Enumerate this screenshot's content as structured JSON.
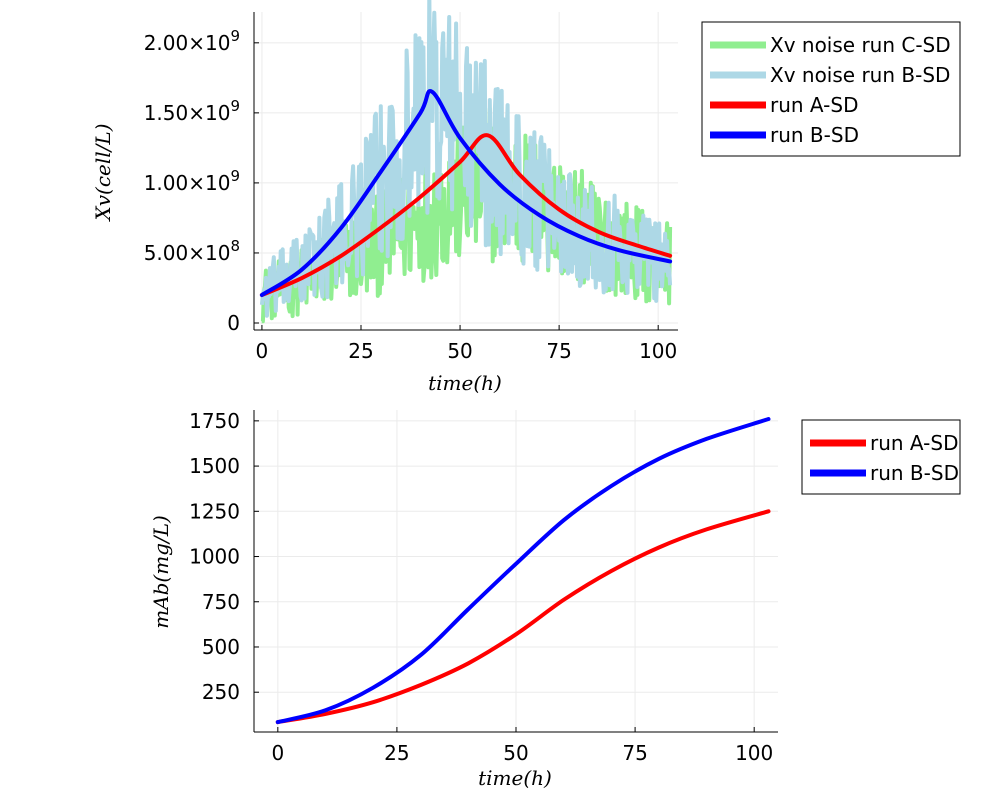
{
  "chart_data": [
    {
      "type": "line",
      "xlabel": "time(h)",
      "ylabel": "Xv(cell/L)",
      "xlim": [
        -2,
        105
      ],
      "ylim": [
        -50000000,
        2220000000
      ],
      "xticks": [
        0,
        25,
        50,
        75,
        100
      ],
      "xtick_labels": [
        "0",
        "25",
        "50",
        "75",
        "100"
      ],
      "yticks": [
        0,
        500000000,
        1000000000,
        1500000000,
        2000000000
      ],
      "ytick_labels": [
        "0",
        "5.00×10",
        "1.00×10",
        "1.50×10",
        "2.00×10"
      ],
      "ytick_exponents": [
        "",
        "8",
        "9",
        "9",
        "9"
      ],
      "grid": true,
      "legend_position": "outside-top-right",
      "series": [
        {
          "name": "Xv noise run C-SD",
          "color": "#90ee90",
          "style": "noisy",
          "x": [
            0,
            10,
            20,
            30,
            40,
            50,
            57,
            65,
            75,
            85,
            95,
            103
          ],
          "values": [
            200000000,
            300000000,
            420000000,
            560000000,
            740000000,
            920000000,
            1020000000,
            900000000,
            760000000,
            610000000,
            500000000,
            430000000
          ]
        },
        {
          "name": "Xv noise run B-SD",
          "color": "#add8e6",
          "style": "noisy",
          "x": [
            0,
            10,
            20,
            30,
            40,
            43,
            50,
            60,
            70,
            80,
            90,
            103
          ],
          "values": [
            200000000,
            380000000,
            620000000,
            1000000000,
            1480000000,
            1600000000,
            1420000000,
            1100000000,
            850000000,
            680000000,
            550000000,
            450000000
          ]
        },
        {
          "name": "run A-SD",
          "color": "#ff0000",
          "style": "smooth",
          "x": [
            0,
            10,
            20,
            30,
            40,
            50,
            57,
            65,
            75,
            85,
            95,
            103
          ],
          "values": [
            200000000,
            320000000,
            480000000,
            680000000,
            900000000,
            1150000000,
            1340000000,
            1060000000,
            810000000,
            650000000,
            550000000,
            480000000
          ]
        },
        {
          "name": "run B-SD",
          "color": "#0000ff",
          "style": "smooth",
          "x": [
            0,
            10,
            20,
            30,
            40,
            43,
            50,
            60,
            70,
            80,
            90,
            103
          ],
          "values": [
            200000000,
            380000000,
            680000000,
            1080000000,
            1500000000,
            1650000000,
            1320000000,
            990000000,
            770000000,
            620000000,
            520000000,
            440000000
          ]
        }
      ]
    },
    {
      "type": "line",
      "xlabel": "time(h)",
      "ylabel": "mAb(mg/L)",
      "xlim": [
        -5,
        105
      ],
      "ylim": [
        30,
        1810
      ],
      "xticks": [
        0,
        25,
        50,
        75,
        100
      ],
      "xtick_labels": [
        "0",
        "25",
        "50",
        "75",
        "100"
      ],
      "yticks": [
        250,
        500,
        750,
        1000,
        1250,
        1500,
        1750
      ],
      "ytick_labels": [
        "250",
        "500",
        "750",
        "1000",
        "1250",
        "1500",
        "1750"
      ],
      "grid": true,
      "legend_position": "outside-top-right",
      "series": [
        {
          "name": "run A-SD",
          "color": "#ff0000",
          "x": [
            0,
            10,
            20,
            30,
            40,
            50,
            60,
            70,
            80,
            90,
            103
          ],
          "values": [
            85,
            130,
            195,
            290,
            410,
            570,
            760,
            920,
            1050,
            1150,
            1250
          ]
        },
        {
          "name": "run B-SD",
          "color": "#0000ff",
          "x": [
            0,
            10,
            20,
            30,
            40,
            50,
            60,
            70,
            80,
            90,
            103
          ],
          "values": [
            85,
            150,
            275,
            455,
            710,
            960,
            1200,
            1390,
            1540,
            1650,
            1760
          ]
        }
      ]
    }
  ]
}
